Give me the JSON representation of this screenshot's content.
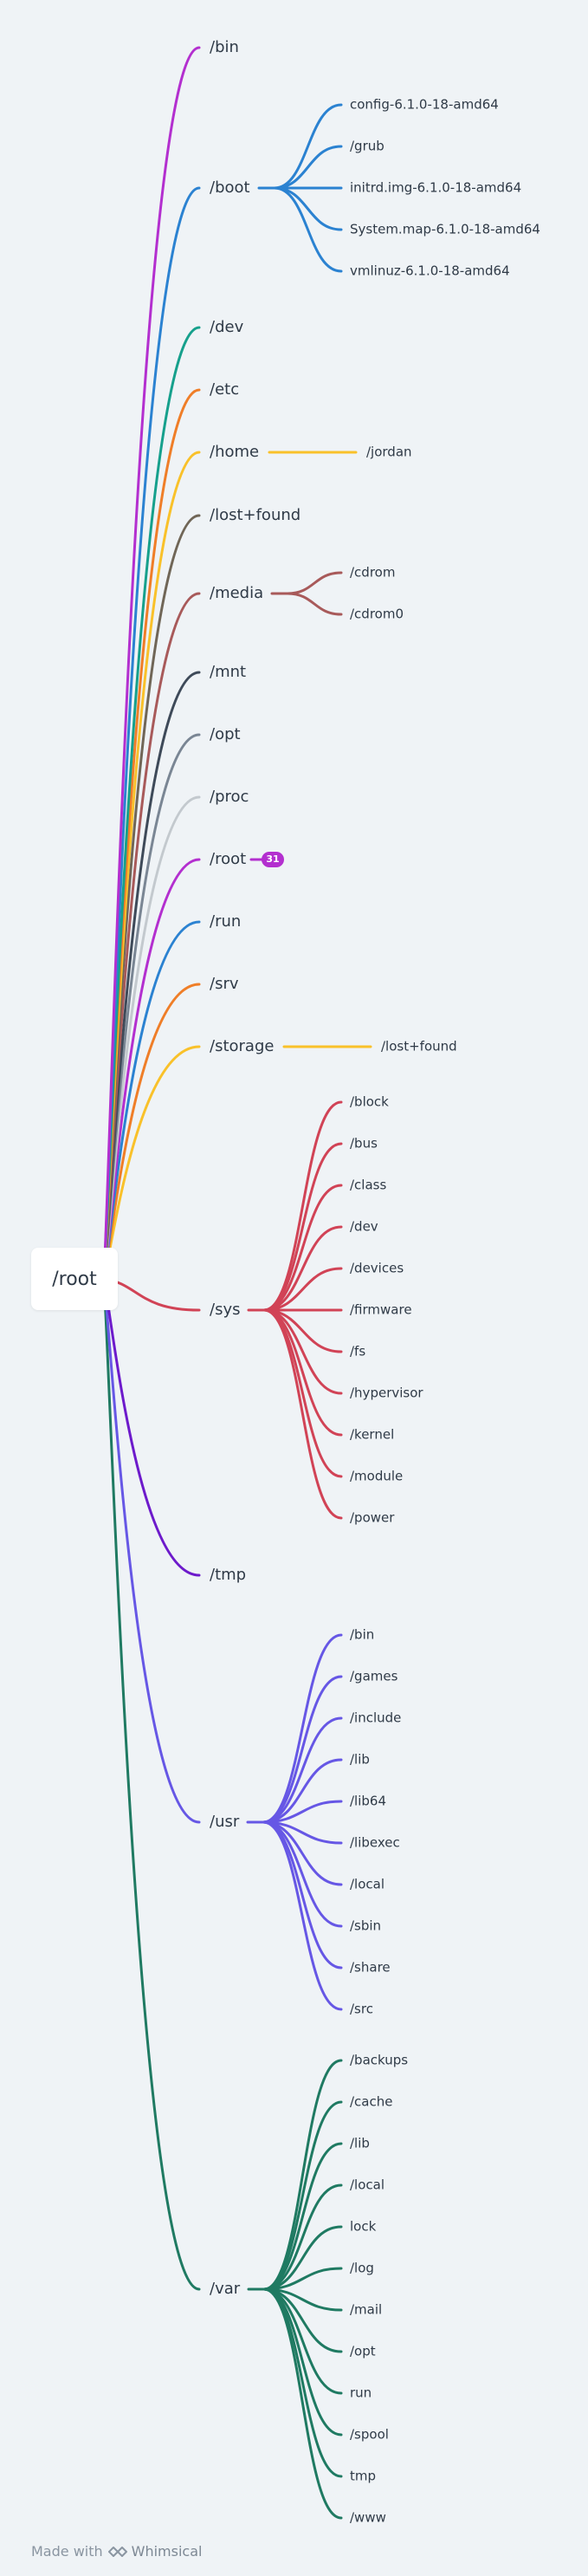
{
  "root": {
    "label": "/root"
  },
  "colors": {
    "purple": "#b32fcf",
    "blue": "#2b82d1",
    "teal": "#16a08c",
    "orange": "#ef7e28",
    "yellow": "#f9c12a",
    "brown": "#706657",
    "rose": "#a85a5a",
    "navy": "#3e4a59",
    "gray": "#7a8694",
    "silver": "#c3c9ce",
    "red": "#d14356",
    "violet": "#6d1acb",
    "indigo": "#6657e5",
    "green": "#1f7a62"
  },
  "branches": [
    {
      "label": "/bin",
      "color": "purple",
      "children": []
    },
    {
      "label": "/boot",
      "color": "blue",
      "children": [
        "config-6.1.0-18-amd64",
        "/grub",
        "initrd.img-6.1.0-18-amd64",
        "System.map-6.1.0-18-amd64",
        "vmlinuz-6.1.0-18-amd64"
      ]
    },
    {
      "label": "/dev",
      "color": "teal",
      "children": []
    },
    {
      "label": "/etc",
      "color": "orange",
      "children": []
    },
    {
      "label": "/home",
      "color": "yellow",
      "children": [
        "/jordan"
      ]
    },
    {
      "label": "/lost+found",
      "color": "brown",
      "children": []
    },
    {
      "label": "/media",
      "color": "rose",
      "children": [
        "/cdrom",
        "/cdrom0"
      ]
    },
    {
      "label": "/mnt",
      "color": "navy",
      "children": []
    },
    {
      "label": "/opt",
      "color": "gray",
      "children": []
    },
    {
      "label": "/proc",
      "color": "silver",
      "children": []
    },
    {
      "label": "/root",
      "color": "purple",
      "children": [],
      "badge": "31"
    },
    {
      "label": "/run",
      "color": "blue",
      "children": []
    },
    {
      "label": "/srv",
      "color": "orange",
      "children": []
    },
    {
      "label": "/storage",
      "color": "yellow",
      "children": [
        "/lost+found"
      ]
    },
    {
      "label": "/sys",
      "color": "red",
      "children": [
        "/block",
        "/bus",
        "/class",
        "/dev",
        "/devices",
        "/firmware",
        "/fs",
        "/hypervisor",
        "/kernel",
        "/module",
        "/power"
      ]
    },
    {
      "label": "/tmp",
      "color": "violet",
      "children": []
    },
    {
      "label": "/usr",
      "color": "indigo",
      "children": [
        "/bin",
        "/games",
        "/include",
        "/lib",
        "/lib64",
        "/libexec",
        "/local",
        "/sbin",
        "/share",
        "/src"
      ]
    },
    {
      "label": "/var",
      "color": "green",
      "children": [
        "/backups",
        "/cache",
        "/lib",
        "/local",
        "lock",
        "/log",
        "/mail",
        "/opt",
        "run",
        "/spool",
        "tmp",
        "/www"
      ]
    }
  ],
  "footer": {
    "made_with": "Made with",
    "brand": "Whimsical",
    "brand_icon": "whimsical-logo-icon"
  }
}
